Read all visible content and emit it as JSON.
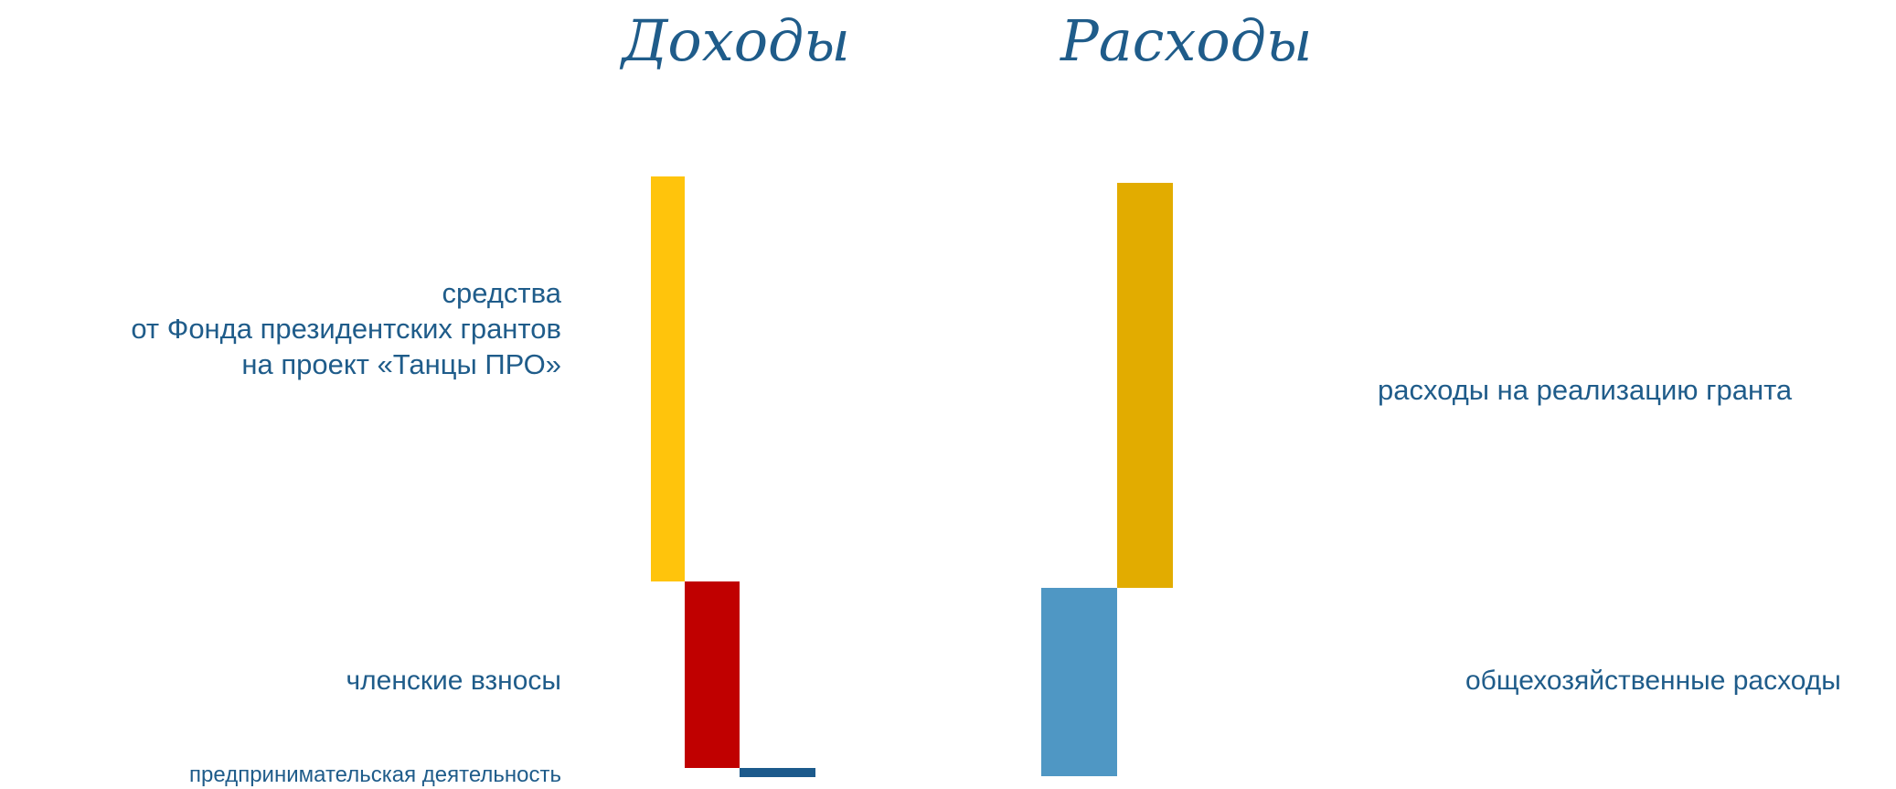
{
  "titles": {
    "income": "Доходы",
    "expenses": "Расходы"
  },
  "colors": {
    "text": "#1f5c8a",
    "grant_income": "#ffc40c",
    "membership": "#c00000",
    "business": "#1c5a8c",
    "grant_expense": "#e2ac00",
    "overhead": "#4f97c4"
  },
  "chart_data": [
    {
      "type": "bar",
      "title": "Доходы",
      "segments": [
        {
          "label": [
            "средства",
            "от Фонда президентских грантов",
            "на проект «Танцы ПРО»"
          ],
          "value": 100,
          "color": "#ffc40c"
        },
        {
          "label": [
            "членские взносы"
          ],
          "value": 46,
          "color": "#c00000"
        },
        {
          "label": [
            "предпринимательская деятельность"
          ],
          "value": 2.4,
          "color": "#1c5a8c"
        }
      ]
    },
    {
      "type": "bar",
      "title": "Расходы",
      "segments": [
        {
          "label": [
            "расходы на реализацию гранта"
          ],
          "value": 100,
          "color": "#e2ac00"
        },
        {
          "label": [
            "общехозяйственные расходы"
          ],
          "value": 46.5,
          "color": "#4f97c4"
        }
      ]
    }
  ]
}
